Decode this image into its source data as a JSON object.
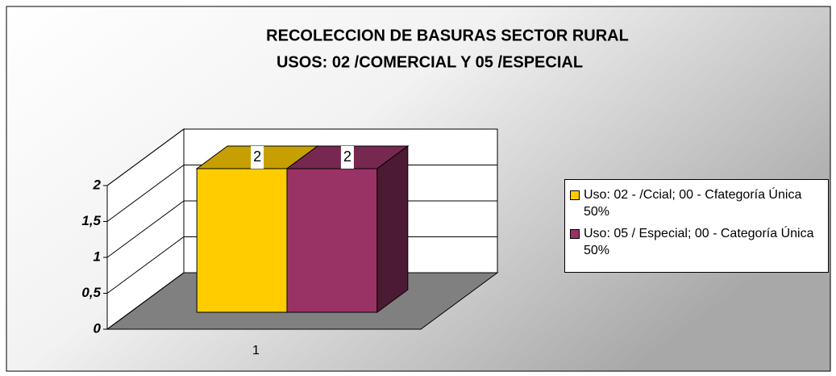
{
  "chart_data": {
    "type": "bar3d",
    "title": "RECOLECCION DE BASURAS SECTOR RURAL",
    "subtitle": "USOS:  02 /COMERCIAL Y 05 /ESPECIAL",
    "categories": [
      "1"
    ],
    "series": [
      {
        "name": "Uso: 02 - /Ccial; 00 - Cfategoría Única 50%",
        "color": "#FFCC00",
        "values": [
          2
        ]
      },
      {
        "name": "Uso: 05 / Especial; 00 - Categoría Única 50%",
        "color": "#993366",
        "values": [
          2
        ]
      }
    ],
    "ylim": [
      0,
      2
    ],
    "yticks": [
      0,
      {
        "value": 0.5,
        "label": "0,5"
      },
      1,
      {
        "value": 1.5,
        "label": "1,5"
      },
      2
    ],
    "grid": true,
    "legend": "right"
  }
}
